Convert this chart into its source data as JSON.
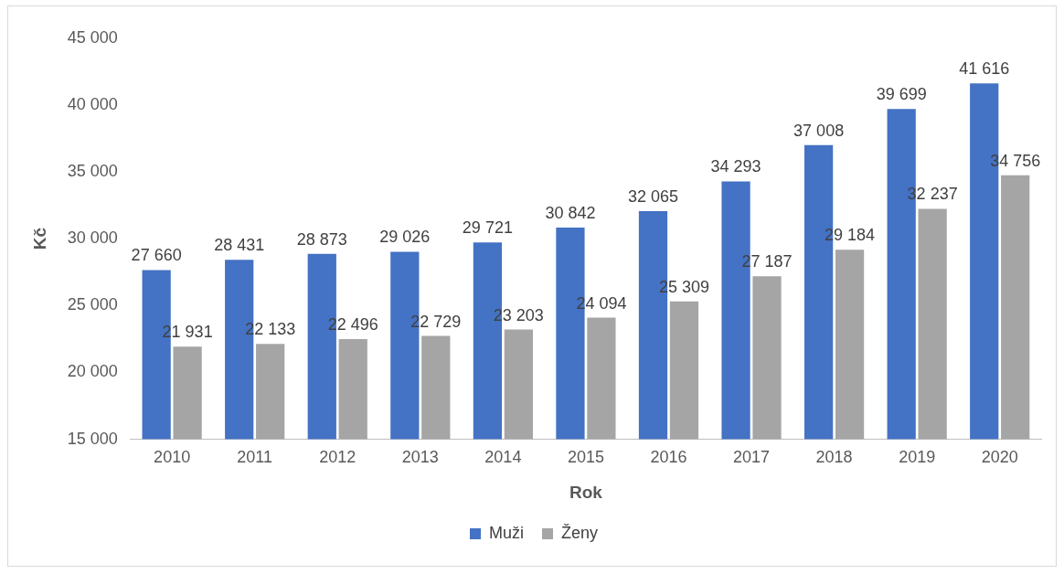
{
  "chart_data": {
    "type": "bar",
    "xlabel": "Rok",
    "ylabel": "Kč",
    "categories": [
      "2010",
      "2011",
      "2012",
      "2013",
      "2014",
      "2015",
      "2016",
      "2017",
      "2018",
      "2019",
      "2020"
    ],
    "series": [
      {
        "name": "Muži",
        "color": "#4472c4",
        "values": [
          27660,
          28431,
          28873,
          29026,
          29721,
          30842,
          32065,
          34293,
          37008,
          39699,
          41616
        ],
        "value_labels": [
          "27 660",
          "28 431",
          "28 873",
          "29 026",
          "29 721",
          "30 842",
          "32 065",
          "34 293",
          "37 008",
          "39 699",
          "41 616"
        ]
      },
      {
        "name": "Ženy",
        "color": "#a5a5a5",
        "values": [
          21931,
          22133,
          22496,
          22729,
          23203,
          24094,
          25309,
          27187,
          29184,
          32237,
          34756
        ],
        "value_labels": [
          "21 931",
          "22 133",
          "22 496",
          "22 729",
          "23 203",
          "24 094",
          "25 309",
          "27 187",
          "29 184",
          "32 237",
          "34 756"
        ]
      }
    ],
    "ylim": [
      15000,
      45000
    ],
    "yticks": [
      {
        "value": 15000,
        "label": "15 000"
      },
      {
        "value": 20000,
        "label": "20 000"
      },
      {
        "value": 25000,
        "label": "25 000"
      },
      {
        "value": 30000,
        "label": "30 000"
      },
      {
        "value": 35000,
        "label": "35 000"
      },
      {
        "value": 40000,
        "label": "40 000"
      },
      {
        "value": 45000,
        "label": "45 000"
      }
    ],
    "grid": false,
    "legend": "bottom"
  }
}
